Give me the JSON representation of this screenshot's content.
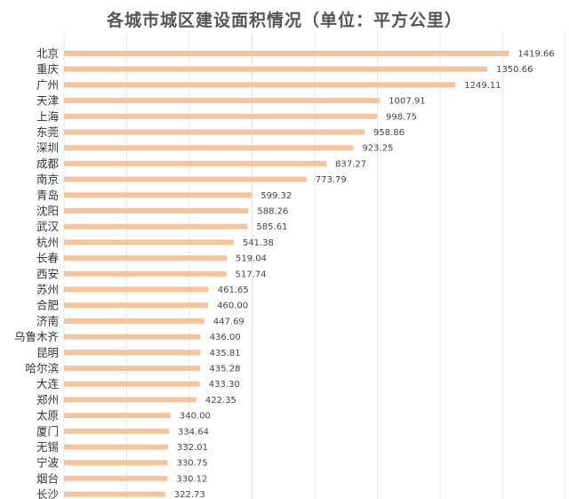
{
  "chart_data": {
    "type": "bar",
    "orientation": "horizontal",
    "title": "各城市城区建设面积情况（单位：平方公里）",
    "xlabel": "",
    "ylabel": "",
    "categories": [
      "北京",
      "重庆",
      "广州",
      "天津",
      "上海",
      "东莞",
      "深圳",
      "成都",
      "南京",
      "青岛",
      "沈阳",
      "武汉",
      "杭州",
      "长春",
      "西安",
      "苏州",
      "合肥",
      "济南",
      "乌鲁木齐",
      "昆明",
      "哈尔滨",
      "大连",
      "郑州",
      "太原",
      "厦门",
      "无锡",
      "宁波",
      "烟台",
      "长沙"
    ],
    "values": [
      1419.66,
      1350.66,
      1249.11,
      1007.91,
      998.75,
      958.86,
      923.25,
      837.27,
      773.79,
      599.32,
      588.26,
      585.61,
      541.38,
      519.04,
      517.74,
      461.65,
      460.0,
      447.69,
      436.0,
      435.81,
      435.28,
      433.3,
      422.35,
      340.0,
      334.64,
      332.01,
      330.75,
      330.12,
      322.73
    ],
    "value_labels": [
      "1419.66",
      "1350.66",
      "1249.11",
      "1007.91",
      "998.75",
      "958.86",
      "923.25",
      "837.27",
      "773.79",
      "599.32",
      "588.26",
      "585.61",
      "541.38",
      "519.04",
      "517.74",
      "461.65",
      "460.00",
      "447.69",
      "436.00",
      "435.81",
      "435.28",
      "433.30",
      "422.35",
      "340.00",
      "334.64",
      "332.01",
      "330.75",
      "330.12",
      "322.73"
    ],
    "xlim": [
      0,
      1600
    ],
    "grid": true,
    "legend": "none",
    "bar_color": "#f4c49c",
    "grid_color": "#e6e6e6"
  }
}
